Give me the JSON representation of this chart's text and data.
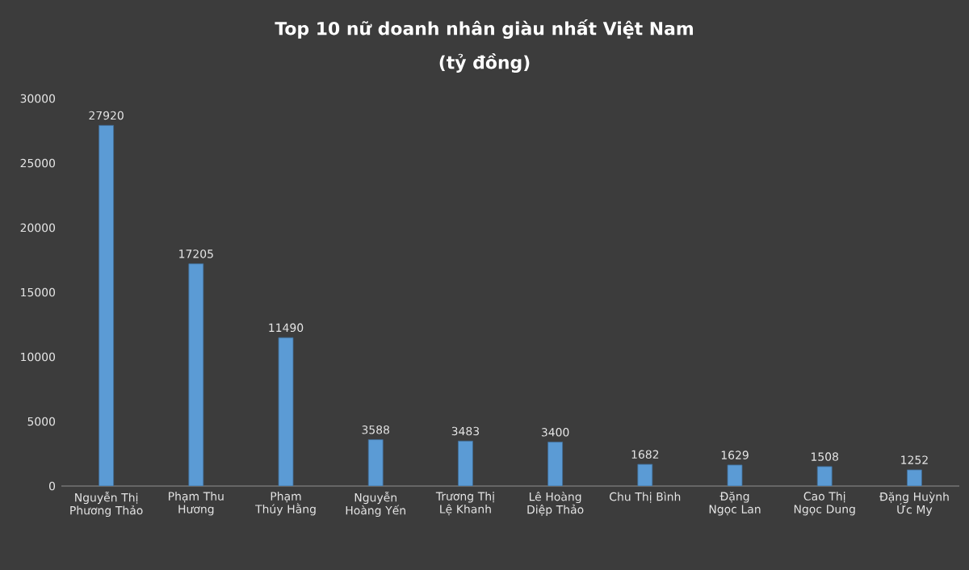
{
  "chart_data": {
    "type": "bar",
    "title": "Top 10 nữ doanh nhân giàu nhất Việt Nam",
    "subtitle": "(tỷ đồng)",
    "categories": [
      "Nguyễn Thị Phương Thảo",
      "Phạm Thu Hương",
      "Phạm Thúy Hằng",
      "Nguyễn Hoàng Yến",
      "Trương Thị Lệ Khanh",
      "Lê Hoàng Diệp Thảo",
      "Chu Thị Bình",
      "Đặng Ngọc Lan",
      "Cao Thị Ngọc Dung",
      "Đặng Huỳnh Ức My"
    ],
    "values": [
      27920,
      17205,
      11490,
      3588,
      3483,
      3400,
      1682,
      1629,
      1508,
      1252
    ],
    "color": "#5b9bd5",
    "ylim": [
      0,
      30000
    ],
    "yticks": [
      0,
      5000,
      10000,
      15000,
      20000,
      25000,
      30000
    ],
    "grid": false,
    "data_labels": true
  }
}
